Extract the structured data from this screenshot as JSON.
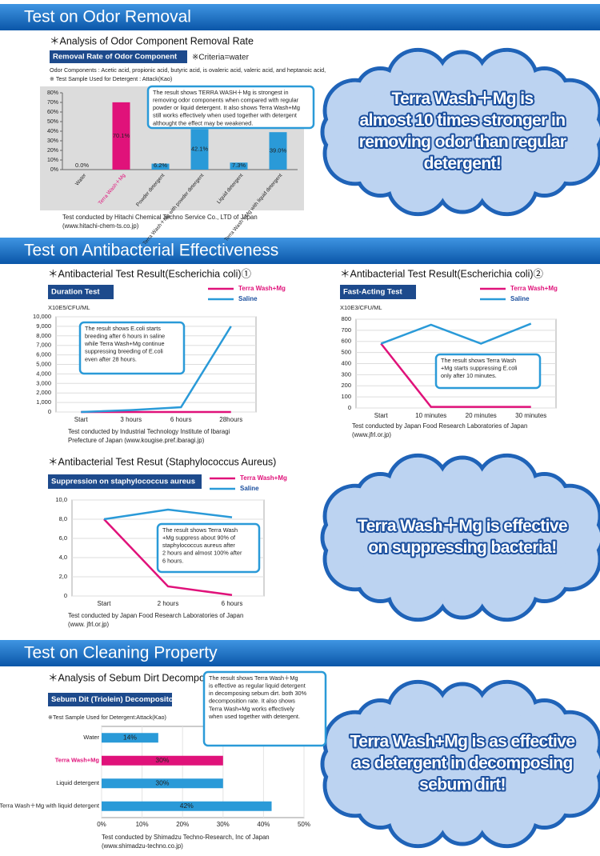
{
  "sections": [
    {
      "title": "Test on Odor Removal",
      "cloud": [
        "Terra Wash＋Mg is",
        "almost 10 times stronger in",
        "removing odor than regular",
        "detergent!"
      ]
    },
    {
      "title": "Test on Antibacterial Effectiveness",
      "cloud": [
        "Terra Wash＋Mg is effective",
        "on suppressing bacteria!"
      ]
    },
    {
      "title": "Test on Cleaning Property",
      "cloud": [
        "Terra Wash+Mg is as effective",
        "as detergent in decomposing",
        "sebum dirt!"
      ]
    }
  ],
  "chart_data": [
    {
      "type": "bar",
      "title": "＊Analysis of Odor Component Removal Rate",
      "label": "Removal Rate of Odor Component",
      "criteria": "※Criteria=water",
      "notes": [
        "Odor Components : Acetic acid, propionic acid, butyric acid, is ovaleric acid, valeric acid, and heptanoic acid,",
        "※ Test Sample Used for Detergent : Attack(Kao)"
      ],
      "annotation": [
        "The result shows TERRA WASH＋Mg is strongest in",
        "removing odor components when compared with regular",
        "powder or liquid detergent. It also shows Terra Wash+Mg",
        "still works effectively when used together with detergent",
        "althought the effect may be weakened."
      ],
      "source": [
        "Test conducted by Hitachi Chemical Techno Service Co., LTD of Japan",
        "(www.hitachi-chem-ts.co.jp)"
      ],
      "categories": [
        "Water",
        "Terra Wash＋Mg",
        "Powder detergent",
        "Terra Wash＋Mg with powder detergent",
        "Liquid detergent",
        "Terra Wash＋Mg with liquid detergent"
      ],
      "values": [
        0.0,
        70.1,
        6.2,
        42.1,
        7.3,
        39.0
      ],
      "value_labels": [
        "0.0%",
        "70.1%",
        "6.2%",
        "42.1%",
        "7.3%",
        "39.0%"
      ],
      "colors": [
        "#2a9ad8",
        "#e0127a",
        "#2a9ad8",
        "#2a9ad8",
        "#2a9ad8",
        "#2a9ad8"
      ],
      "ylim": [
        0,
        80
      ],
      "yticks": [
        {
          "value": 0,
          "label": "0%"
        },
        {
          "value": 10,
          "label": "10%"
        },
        {
          "value": 20,
          "label": "20%"
        },
        {
          "value": 30,
          "label": "30%"
        },
        {
          "value": 40,
          "label": "40%"
        },
        {
          "value": 50,
          "label": "50%"
        },
        {
          "value": 60,
          "label": "60%"
        },
        {
          "value": 70,
          "label": "70%"
        },
        {
          "value": 80,
          "label": "80%"
        }
      ],
      "grid": false
    },
    {
      "type": "line",
      "title": "＊Antibacterial Test Result(Escherichia coli)①",
      "label": "Duration Test",
      "unit": "X10E5/CFU/ML",
      "annotation": [
        "The result shows E.coli starts",
        "breeding after 6 hours in saline",
        "while Terra Wash+Mg continue",
        "suppressing breeding of E.coli",
        "even after 28 hours."
      ],
      "source": [
        "Test conducted by Industrial Technology Institute of Ibaragi",
        "Prefecture of Japan (www.kougise.pref.ibaragi.jp)"
      ],
      "categories": [
        "Start",
        "3 hours",
        "6 hours",
        "28hours"
      ],
      "series": [
        {
          "name": "Terra Wash+Mg",
          "color": "#e0127a",
          "values": [
            0,
            0,
            0,
            0
          ]
        },
        {
          "name": "Saline",
          "color": "#2a9ad8",
          "values": [
            0,
            200,
            500,
            9000
          ]
        }
      ],
      "ylim": [
        0,
        10000
      ],
      "yticks": [
        0,
        {
          "value": 1000,
          "label": "1,000"
        },
        {
          "value": 2000,
          "label": "2,000"
        },
        {
          "value": 3000,
          "label": "3,000"
        },
        {
          "value": 4000,
          "label": "4,000"
        },
        {
          "value": 5000,
          "label": "5,000"
        },
        {
          "value": 6000,
          "label": "6,000"
        },
        {
          "value": 7000,
          "label": "7,000"
        },
        {
          "value": 8000,
          "label": "8,000"
        },
        {
          "value": 9000,
          "label": "9,000"
        },
        {
          "value": 10000,
          "label": "10,000"
        }
      ],
      "grid": true
    },
    {
      "type": "line",
      "title": "＊Antibacterial Test Result(Escherichia coli)②",
      "label": "Fast-Acting Test",
      "unit": "X10E3/CFU/ML",
      "annotation": [
        "The result shows Terra Wash",
        "+Mg starts suppressing E.coli",
        "only after 10 minutes."
      ],
      "source": [
        "Test conducted by Japan Food Research Laboratories of Japan",
        "(www.jfrl.or.jp)"
      ],
      "categories": [
        "Start",
        "10 minutes",
        "20 minutes",
        "30 minutes"
      ],
      "series": [
        {
          "name": "Terra Wash+Mg",
          "color": "#e0127a",
          "values": [
            580,
            10,
            10,
            10
          ]
        },
        {
          "name": "Saline",
          "color": "#2a9ad8",
          "values": [
            580,
            750,
            580,
            760
          ]
        }
      ],
      "ylim": [
        0,
        800
      ],
      "yticks": [
        0,
        100,
        200,
        300,
        400,
        500,
        600,
        700,
        800
      ],
      "grid": true
    },
    {
      "type": "line",
      "title": "＊Antibacterial Test Resut (Staphylococcus Aureus)",
      "label": "Suppression on staphylococcus aureus",
      "annotation": [
        "The result shows Terra Wash",
        "+Mg suppress about 90% of",
        "staphylococcus aureus after",
        "2 hours and almost 100% after",
        "6 hours."
      ],
      "source": [
        "Test conducted by Japan Food Research Laboratories of Japan",
        "(www. jfrl.or.jp)"
      ],
      "categories": [
        "Start",
        "2 hours",
        "6 hours"
      ],
      "series": [
        {
          "name": "Terra Wash+Mg",
          "color": "#e0127a",
          "values": [
            8,
            1,
            0.1
          ]
        },
        {
          "name": "Saline",
          "color": "#2a9ad8",
          "values": [
            8,
            9,
            8.2
          ]
        }
      ],
      "ylim": [
        0,
        10
      ],
      "yticks": [
        0,
        {
          "value": 2,
          "label": "2,0"
        },
        {
          "value": 4,
          "label": "4,0"
        },
        {
          "value": 6,
          "label": "6,0"
        },
        {
          "value": 8,
          "label": "8,0"
        },
        {
          "value": 10,
          "label": "10,0"
        }
      ],
      "grid": true
    },
    {
      "type": "bar",
      "horizontal": true,
      "title": "＊Analysis of Sebum Dirt Decomposition Rate",
      "label": "Sebum Dit (Triolein) Decompositon Rate",
      "notes": [
        "※Test Sample Used for Detergent:Attack(Kao)"
      ],
      "annotation": [
        "The result shows Terra Wash＋Mg",
        "is effective as regular liquid detergent",
        "in decomposing sebum dirt. both 30%",
        "decomposition rate.  It also shows",
        "Terra Wash+Mg works effectively",
        "when used together with detergent."
      ],
      "source": [
        "Test conducted by Shimadzu Techno-Research, Inc of Japan",
        "(www.shimadzu-techno.co.jp)"
      ],
      "categories": [
        "Water",
        "Terra Wash+Mg",
        "Liquid detergent",
        "Terra Wash＋Mg with liquid detergent"
      ],
      "values": [
        14,
        30,
        30,
        42
      ],
      "value_labels": [
        "14%",
        "30%",
        "30%",
        "42%"
      ],
      "colors": [
        "#2a9ad8",
        "#e0127a",
        "#2a9ad8",
        "#2a9ad8"
      ],
      "xlim": [
        0,
        50
      ],
      "xticks": [
        {
          "value": 0,
          "label": "0%"
        },
        {
          "value": 10,
          "label": "10%"
        },
        {
          "value": 20,
          "label": "20%"
        },
        {
          "value": 30,
          "label": "30%"
        },
        {
          "value": 40,
          "label": "40%"
        },
        {
          "value": 50,
          "label": "50%"
        }
      ],
      "grid": true
    }
  ]
}
